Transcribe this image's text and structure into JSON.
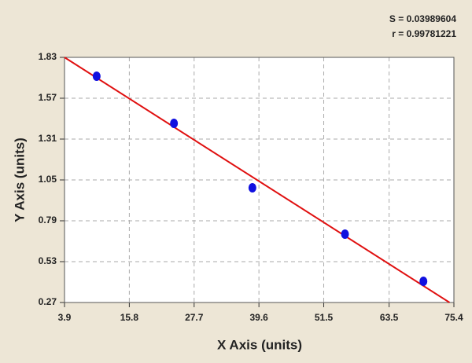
{
  "chart_data": {
    "type": "scatter",
    "annotations": [
      "S = 0.03989604",
      "r = 0.99781221"
    ],
    "x_label": "X Axis (units)",
    "y_label": "Y Axis (units)",
    "series": [
      {
        "color": "#1010e0",
        "x": [
          9.8,
          24,
          38.4,
          55.4,
          69.8
        ],
        "values": [
          1.71,
          1.41,
          1.0,
          0.705,
          0.405
        ]
      }
    ],
    "fit_line": {
      "color": "#e01010",
      "x": [
        3.9,
        74.6
      ],
      "values": [
        1.83,
        0.27
      ]
    },
    "xlim": [
      3.9,
      75.4
    ],
    "xticks": [
      3.9,
      15.8,
      27.7,
      39.6,
      51.5,
      63.5,
      75.4
    ],
    "ylim": [
      0.27,
      1.83
    ],
    "yticks": [
      0.27,
      0.53,
      0.79,
      1.05,
      1.31,
      1.57,
      1.83
    ],
    "grid": true
  }
}
